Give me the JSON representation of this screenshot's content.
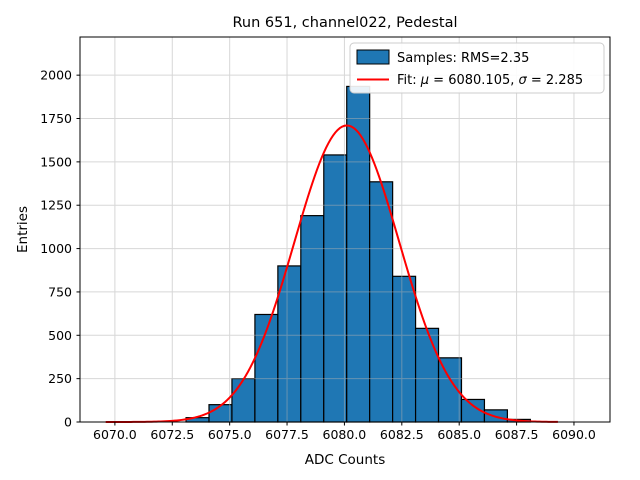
{
  "window": {
    "title": "Run 651, channel022, Pedestal"
  },
  "chart_data": {
    "type": "histogram",
    "title": "Run 651, channel022, Pedestal",
    "xlabel": "ADC Counts",
    "ylabel": "Entries",
    "xlim": [
      6068.48,
      6091.57
    ],
    "ylim": [
      0,
      2220
    ],
    "xticks": [
      6070.0,
      6072.5,
      6075.0,
      6077.5,
      6080.0,
      6082.5,
      6085.0,
      6087.5,
      6090.0
    ],
    "yticks": [
      0,
      250,
      500,
      750,
      1000,
      1250,
      1500,
      1750,
      2000
    ],
    "grid": true,
    "legend_position": "upper right",
    "hist": {
      "label": "Samples: RMS=2.35",
      "rms": 2.35,
      "bin_start": 6073.1,
      "bin_width": 1.0,
      "bin_centers": [
        6073.6,
        6074.6,
        6075.6,
        6076.6,
        6077.6,
        6078.6,
        6079.6,
        6080.6,
        6081.6,
        6082.6,
        6083.6,
        6084.6,
        6085.6,
        6086.6,
        6087.6
      ],
      "counts": [
        25,
        100,
        250,
        620,
        900,
        1190,
        1540,
        1935,
        1385,
        840,
        540,
        370,
        130,
        70,
        15
      ],
      "fill_color": "#1f77b4",
      "edge_color": "#000000"
    },
    "fit": {
      "label": "Fit: μ = 6080.105, σ = 2.285",
      "mu": 6080.105,
      "sigma": 2.285,
      "amplitude": 1710,
      "x_range": [
        6069.6,
        6089.3
      ],
      "color": "#ff0000"
    }
  },
  "colors": {
    "background": "#ffffff",
    "grid": "#b0b0b0",
    "spine": "#000000",
    "hist_fill": "#1f77b4",
    "fit_line": "#ff0000",
    "legend_border": "#cccccc"
  }
}
